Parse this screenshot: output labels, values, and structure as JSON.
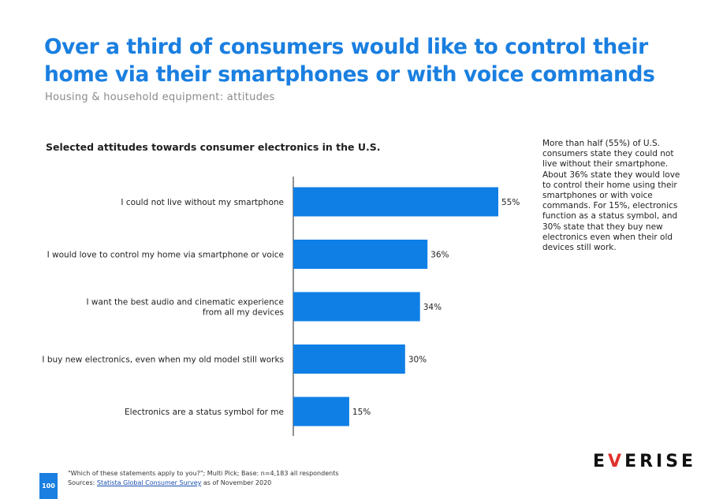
{
  "page": {
    "title": "Over a third of consumers would like to control their home via their smartphones or with voice commands",
    "subtitle": "Housing & household equipment: attitudes",
    "side_note": "More than half (55%) of U.S. consumers state they could not live without their smartphone. About 36% state they would love to control their home using their smartphones or with voice commands. For 15%, electronics function as a status symbol, and 30% state that they buy new electronics even when their old devices still work.",
    "page_number": "100",
    "footnote_question": "\"Which of these statements apply to you?\"; Multi Pick; Base: n=4,183 all respondents",
    "footnote_sources_prefix": "Sources: ",
    "footnote_source_link": "Statista Global Consumer Survey",
    "footnote_sources_suffix": " as of November 2020",
    "logo": {
      "left": "E",
      "v": "V",
      "right": "ERISE"
    }
  },
  "colors": {
    "bar": "#0f7fe6",
    "title": "#1a7fe0",
    "logo_accent": "#e0322d"
  },
  "chart_data": {
    "type": "bar",
    "orientation": "horizontal",
    "title": "Selected attitudes towards consumer electronics in the U.S.",
    "categories": [
      [
        "I could not live without my smartphone"
      ],
      [
        "I would love to control my home via smartphone or voice"
      ],
      [
        "I want the best audio and cinematic experience",
        "from all my devices"
      ],
      [
        "I buy new electronics, even when my old model still works"
      ],
      [
        "Electronics are a status symbol for me"
      ]
    ],
    "values": [
      55,
      36,
      34,
      30,
      15
    ],
    "value_labels": [
      "55%",
      "36%",
      "34%",
      "30%",
      "15%"
    ],
    "xlim": [
      0,
      55
    ],
    "grid": false,
    "legend": "none"
  }
}
